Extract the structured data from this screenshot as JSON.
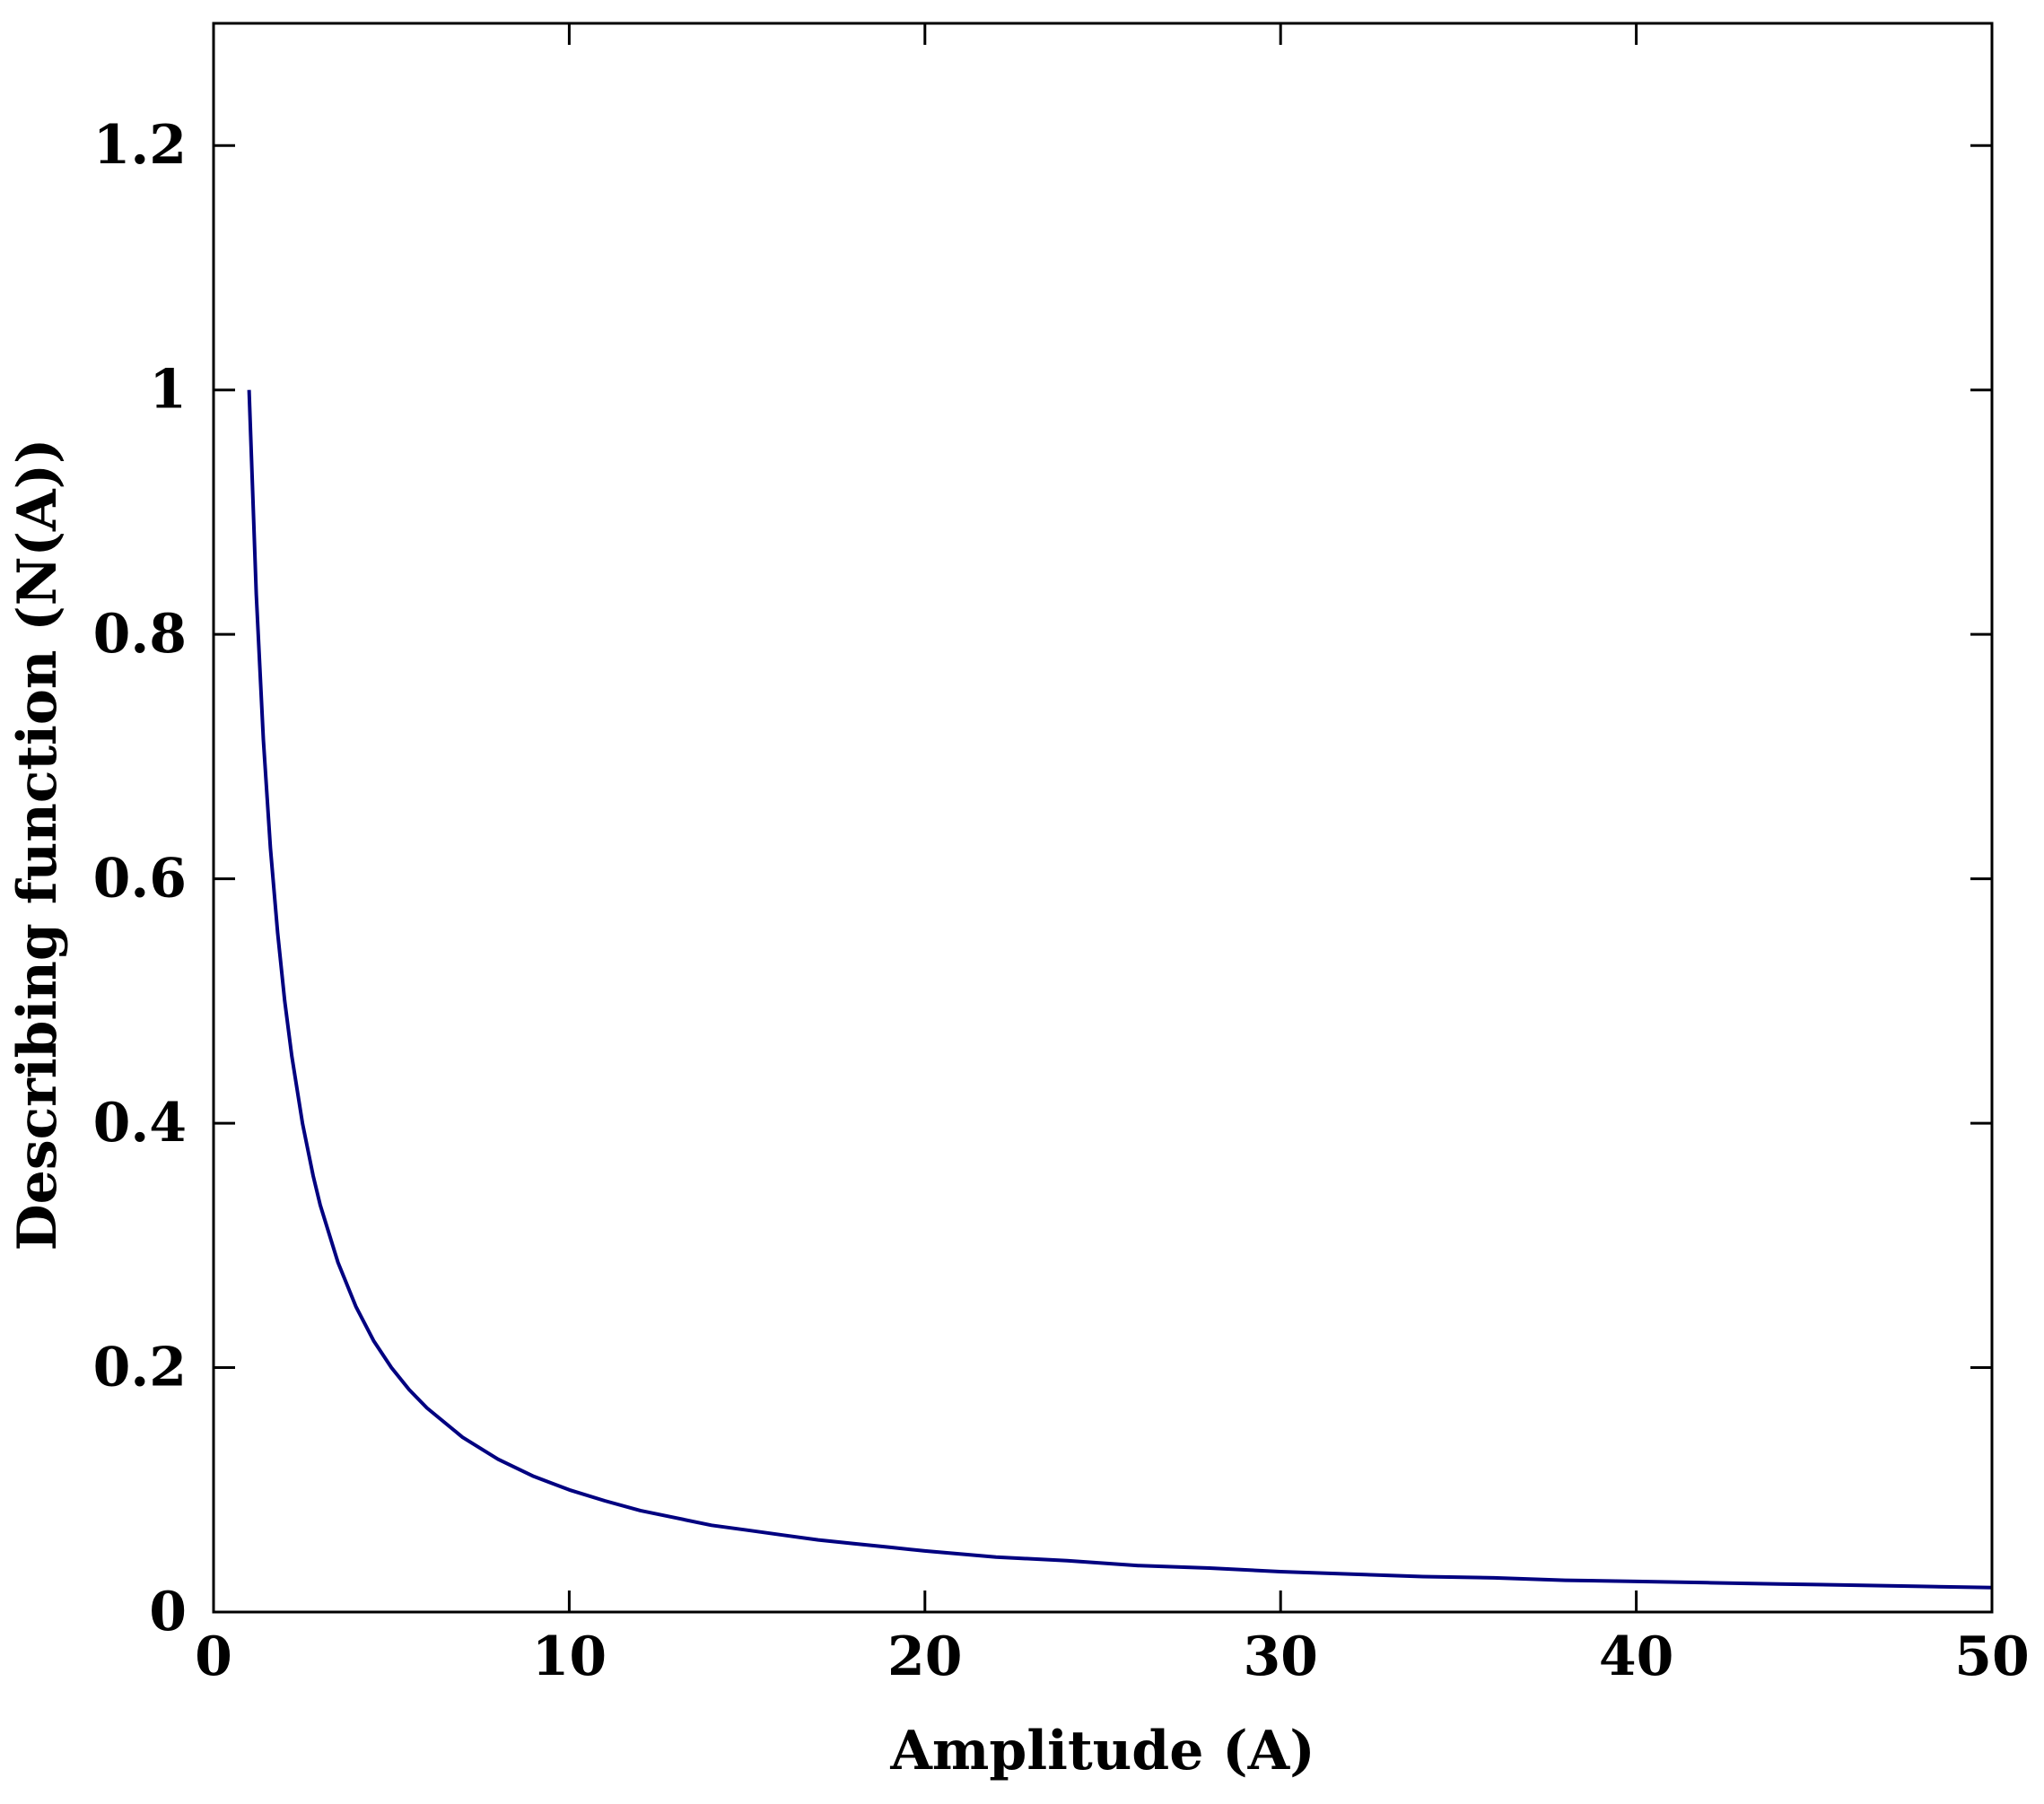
{
  "chart_data": {
    "type": "line",
    "title": "",
    "xlabel": "Amplitude (A)",
    "ylabel": "Describing function (N(A))",
    "xlim": [
      0,
      50
    ],
    "ylim": [
      0,
      1.3
    ],
    "x_ticks": [
      0,
      10,
      20,
      30,
      40,
      50
    ],
    "x_tick_labels": [
      "0",
      "10",
      "20",
      "30",
      "40",
      "50"
    ],
    "y_ticks": [
      0,
      0.2,
      0.4,
      0.6,
      0.8,
      1,
      1.2
    ],
    "y_tick_labels": [
      "0",
      "0.2",
      "0.4",
      "0.6",
      "0.8",
      "1",
      "1.2"
    ],
    "grid": false,
    "line_color": "#000080",
    "series": [
      {
        "x": [
          1,
          1.2,
          1.4,
          1.6,
          1.8,
          2,
          2.2,
          2.5,
          2.8,
          3,
          3.5,
          4,
          4.5,
          5,
          5.5,
          6,
          7,
          8,
          9,
          10,
          11,
          12,
          13,
          14,
          15,
          16,
          17,
          18,
          19,
          20,
          22,
          24,
          26,
          28,
          30,
          32,
          34,
          36,
          38,
          40,
          42,
          44,
          46,
          48,
          50
        ],
        "values": [
          1,
          0.833,
          0.714,
          0.625,
          0.556,
          0.5,
          0.455,
          0.4,
          0.357,
          0.333,
          0.286,
          0.25,
          0.222,
          0.2,
          0.182,
          0.167,
          0.143,
          0.125,
          0.111,
          0.1,
          0.091,
          0.083,
          0.077,
          0.071,
          0.067,
          0.063,
          0.059,
          0.056,
          0.053,
          0.05,
          0.045,
          0.042,
          0.038,
          0.036,
          0.033,
          0.031,
          0.029,
          0.028,
          0.026,
          0.025,
          0.024,
          0.023,
          0.022,
          0.021,
          0.02
        ]
      }
    ]
  }
}
